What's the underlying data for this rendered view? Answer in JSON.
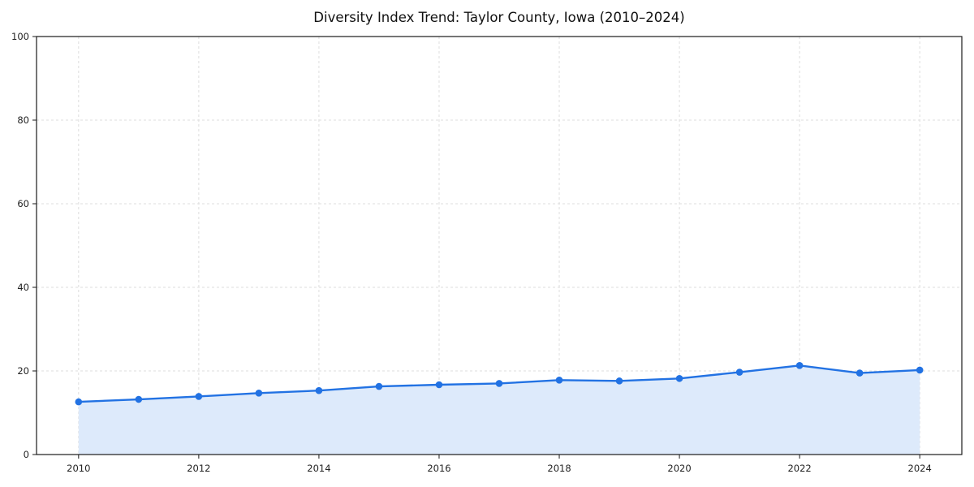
{
  "chart_data": {
    "type": "area",
    "title": "Diversity Index Trend: Taylor County, Iowa (2010–2024)",
    "xlabel": "",
    "ylabel": "",
    "x": [
      2010,
      2011,
      2012,
      2013,
      2014,
      2015,
      2016,
      2017,
      2018,
      2019,
      2020,
      2021,
      2022,
      2023,
      2024
    ],
    "values": [
      12.6,
      13.2,
      13.9,
      14.7,
      15.3,
      16.3,
      16.7,
      17.0,
      17.8,
      17.6,
      18.2,
      19.7,
      21.3,
      19.5,
      20.2
    ],
    "series_name": "Diversity Index",
    "xticks": [
      2010,
      2012,
      2014,
      2016,
      2018,
      2020,
      2022,
      2024
    ],
    "yticks": [
      0,
      20,
      40,
      60,
      80,
      100
    ],
    "xlim": [
      2009.3,
      2024.7
    ],
    "ylim": [
      0,
      100
    ],
    "grid": true,
    "grid_style": "dashed",
    "legend_position": "none",
    "line_color": "#2272e3",
    "fill_color": "#ddeafb",
    "marker_color": "#2272e3",
    "grid_color": "#dedede",
    "spine_color": "#1a1a1a",
    "tick_label_color": "#222222",
    "background_color": "#ffffff"
  }
}
